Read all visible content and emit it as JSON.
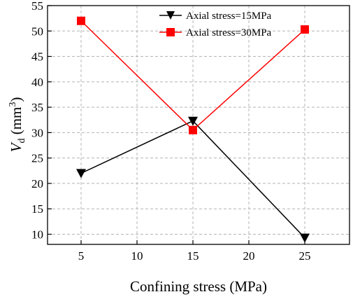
{
  "chart_data": {
    "type": "line",
    "xlabel": "Confining stress (MPa)",
    "ylabel_main": "V",
    "ylabel_sub": "d",
    "ylabel_unit_open": " (mm",
    "ylabel_unit_sup": "3",
    "ylabel_unit_close": ")",
    "xlim": [
      2,
      29
    ],
    "ylim": [
      8,
      55
    ],
    "xticks": [
      5,
      10,
      15,
      20,
      25
    ],
    "yticks": [
      10,
      15,
      20,
      25,
      30,
      35,
      40,
      45,
      50,
      55
    ],
    "grid": true,
    "legend_position": "top-right",
    "x": [
      5,
      15,
      25
    ],
    "series": [
      {
        "name": "Axial stress=15MPa",
        "values": [
          22.0,
          32.3,
          9.3
        ],
        "color": "#000000",
        "marker": "triangle-down"
      },
      {
        "name": "Axial stress=30MPa",
        "values": [
          52.0,
          30.5,
          50.3
        ],
        "color": "#ff0000",
        "marker": "square"
      }
    ]
  }
}
